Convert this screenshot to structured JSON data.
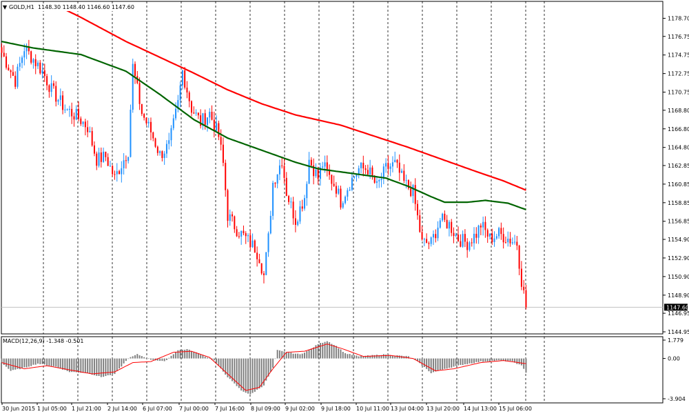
{
  "header": {
    "symbol_label": "GOLD,H1",
    "ohlc_label": "1148.30 1148.40 1146.60 1147.60",
    "menu_glyph": "▼"
  },
  "macd_header": {
    "label": "MACD(12,26,9) -1.348 -0.501"
  },
  "colors": {
    "bull": "#1e90ff",
    "bear": "#ff0000",
    "ma_fast": "#006400",
    "ma_slow": "#ff0000",
    "histogram": "#808080",
    "signal": "#ff0000",
    "price_line": "#c0c0c0",
    "price_tag_bg": "#000000",
    "price_tag_text": "#ffffff",
    "grid": "#000000"
  },
  "chart_data": [
    {
      "type": "candlestick",
      "symbol": "GOLD",
      "timeframe": "H1",
      "ylim": [
        1144.95,
        1180.0
      ],
      "y_ticks": [
        "1178.70",
        "1176.75",
        "1174.75",
        "1172.75",
        "1170.75",
        "1168.80",
        "1166.80",
        "1164.80",
        "1162.85",
        "1160.85",
        "1158.85",
        "1156.85",
        "1154.90",
        "1152.90",
        "1150.90",
        "1148.90",
        "1146.95",
        "1144.95"
      ],
      "x_ticks": [
        "30 Jun 2015",
        "1 Jul 05:00",
        "1 Jul 21:00",
        "2 Jul 14:00",
        "6 Jul 07:00",
        "7 Jul 00:00",
        "7 Jul 16:00",
        "8 Jul 09:00",
        "9 Jul 02:00",
        "9 Jul 18:00",
        "10 Jul 11:00",
        "13 Jul 04:00",
        "13 Jul 20:00",
        "14 Jul 13:00",
        "15 Jul 06:00"
      ],
      "grid": "vertical-dotted",
      "current_price": "1147.60",
      "anchors": [
        [
          0,
          1175.0
        ],
        [
          6,
          1172.0
        ],
        [
          10,
          1175.5
        ],
        [
          14,
          1174.3
        ],
        [
          18,
          1173.0
        ],
        [
          22,
          1171.0
        ],
        [
          28,
          1169.0
        ],
        [
          34,
          1168.0
        ],
        [
          38,
          1167.0
        ],
        [
          42,
          1163.5
        ],
        [
          46,
          1163.8
        ],
        [
          50,
          1161.5
        ],
        [
          54,
          1163.5
        ],
        [
          56,
          1164.5
        ],
        [
          58,
          1173.5
        ],
        [
          62,
          1168.5
        ],
        [
          66,
          1166.5
        ],
        [
          70,
          1164.0
        ],
        [
          74,
          1165.0
        ],
        [
          78,
          1169.5
        ],
        [
          80,
          1173.0
        ],
        [
          84,
          1169.0
        ],
        [
          88,
          1167.5
        ],
        [
          92,
          1168.5
        ],
        [
          96,
          1166.0
        ],
        [
          98,
          1163.0
        ],
        [
          100,
          1157.5
        ],
        [
          104,
          1156.0
        ],
        [
          108,
          1155.0
        ],
        [
          112,
          1154.0
        ],
        [
          114,
          1153.0
        ],
        [
          116,
          1151.0
        ],
        [
          118,
          1155.0
        ],
        [
          120,
          1161.0
        ],
        [
          124,
          1163.5
        ],
        [
          126,
          1160.0
        ],
        [
          130,
          1157.0
        ],
        [
          134,
          1159.5
        ],
        [
          136,
          1163.5
        ],
        [
          140,
          1161.5
        ],
        [
          142,
          1163.0
        ],
        [
          144,
          1162.0
        ],
        [
          148,
          1160.5
        ],
        [
          150,
          1159.0
        ],
        [
          154,
          1161.0
        ],
        [
          158,
          1162.5
        ],
        [
          162,
          1162.5
        ],
        [
          166,
          1160.5
        ],
        [
          170,
          1162.5
        ],
        [
          174,
          1163.0
        ],
        [
          178,
          1161.0
        ],
        [
          182,
          1160.0
        ],
        [
          186,
          1154.5
        ],
        [
          190,
          1154.5
        ],
        [
          194,
          1157.0
        ],
        [
          198,
          1156.5
        ],
        [
          202,
          1155.0
        ],
        [
          206,
          1154.5
        ],
        [
          210,
          1155.5
        ],
        [
          212,
          1156.5
        ],
        [
          216,
          1155.0
        ],
        [
          220,
          1155.5
        ],
        [
          224,
          1155.0
        ],
        [
          228,
          1154.5
        ],
        [
          230,
          1150.5
        ],
        [
          232,
          1147.6
        ]
      ],
      "series": [
        {
          "name": "MA fast",
          "points": [
            [
              0,
              1176.2
            ],
            [
              14,
              1175.5
            ],
            [
              35,
              1174.8
            ],
            [
              55,
              1173.0
            ],
            [
              70,
              1170.5
            ],
            [
              85,
              1167.8
            ],
            [
              100,
              1165.8
            ],
            [
              115,
              1164.5
            ],
            [
              130,
              1163.2
            ],
            [
              140,
              1162.5
            ],
            [
              155,
              1162.0
            ],
            [
              170,
              1161.5
            ],
            [
              180,
              1160.6
            ],
            [
              190,
              1159.5
            ],
            [
              196,
              1158.9
            ],
            [
              206,
              1158.9
            ],
            [
              214,
              1159.1
            ],
            [
              224,
              1158.8
            ],
            [
              232,
              1158.1
            ]
          ]
        },
        {
          "name": "MA slow",
          "points": [
            [
              25,
              1180.0
            ],
            [
              35,
              1178.8
            ],
            [
              55,
              1176.2
            ],
            [
              70,
              1174.5
            ],
            [
              85,
              1172.8
            ],
            [
              100,
              1171.0
            ],
            [
              115,
              1169.5
            ],
            [
              130,
              1168.3
            ],
            [
              150,
              1167.2
            ],
            [
              165,
              1166.0
            ],
            [
              180,
              1164.8
            ],
            [
              195,
              1163.5
            ],
            [
              210,
              1162.2
            ],
            [
              222,
              1161.2
            ],
            [
              232,
              1160.2
            ]
          ]
        }
      ]
    },
    {
      "type": "histogram",
      "name": "MACD(12,26,9)",
      "ylim": [
        -3.904,
        1.779
      ],
      "y_ticks": [
        "1.779",
        "0.00",
        "-3.904"
      ],
      "main": [
        [
          0,
          -0.4
        ],
        [
          4,
          -1.2
        ],
        [
          10,
          -0.9
        ],
        [
          16,
          -0.5
        ],
        [
          24,
          -0.8
        ],
        [
          30,
          -1.3
        ],
        [
          38,
          -1.4
        ],
        [
          44,
          -1.8
        ],
        [
          50,
          -1.5
        ],
        [
          56,
          0.0
        ],
        [
          60,
          0.4
        ],
        [
          66,
          -0.1
        ],
        [
          72,
          -0.3
        ],
        [
          78,
          0.8
        ],
        [
          82,
          0.9
        ],
        [
          88,
          0.4
        ],
        [
          94,
          -0.2
        ],
        [
          100,
          -1.8
        ],
        [
          106,
          -3.1
        ],
        [
          110,
          -3.5
        ],
        [
          116,
          -2.6
        ],
        [
          120,
          -0.9
        ],
        [
          122,
          0.8
        ],
        [
          126,
          0.6
        ],
        [
          132,
          0.4
        ],
        [
          136,
          0.8
        ],
        [
          140,
          1.4
        ],
        [
          144,
          1.7
        ],
        [
          148,
          1.2
        ],
        [
          152,
          0.5
        ],
        [
          158,
          0.2
        ],
        [
          164,
          0.3
        ],
        [
          170,
          0.4
        ],
        [
          174,
          0.3
        ],
        [
          180,
          0.2
        ],
        [
          184,
          -0.3
        ],
        [
          190,
          -1.4
        ],
        [
          196,
          -1.0
        ],
        [
          204,
          -0.6
        ],
        [
          212,
          -0.3
        ],
        [
          220,
          -0.2
        ],
        [
          226,
          -0.3
        ],
        [
          230,
          -0.7
        ],
        [
          232,
          -1.348
        ]
      ],
      "signal": [
        [
          0,
          -0.4
        ],
        [
          10,
          -1.0
        ],
        [
          20,
          -0.7
        ],
        [
          30,
          -1.1
        ],
        [
          40,
          -1.5
        ],
        [
          50,
          -1.3
        ],
        [
          58,
          -0.4
        ],
        [
          66,
          -0.3
        ],
        [
          76,
          0.6
        ],
        [
          84,
          0.7
        ],
        [
          92,
          0.1
        ],
        [
          100,
          -1.5
        ],
        [
          108,
          -3.1
        ],
        [
          114,
          -2.8
        ],
        [
          120,
          -1.0
        ],
        [
          126,
          0.6
        ],
        [
          134,
          0.7
        ],
        [
          144,
          1.4
        ],
        [
          150,
          1.0
        ],
        [
          160,
          0.2
        ],
        [
          172,
          0.3
        ],
        [
          182,
          0.0
        ],
        [
          192,
          -1.2
        ],
        [
          200,
          -1.0
        ],
        [
          212,
          -0.4
        ],
        [
          222,
          -0.2
        ],
        [
          232,
          -0.501
        ]
      ]
    }
  ]
}
